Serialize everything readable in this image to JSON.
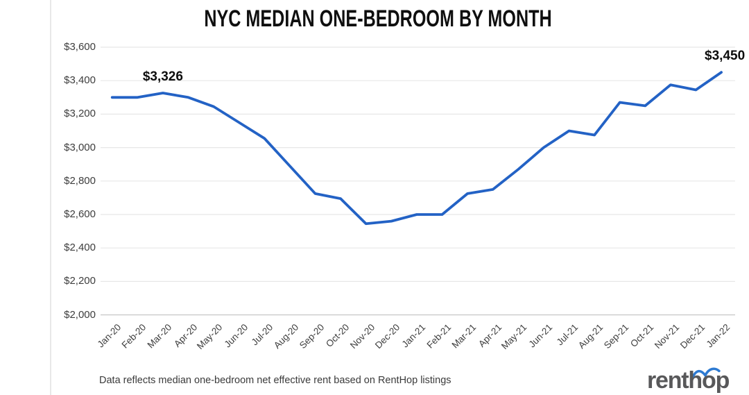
{
  "chart": {
    "title": "NYC MEDIAN ONE-BEDROOM BY MONTH",
    "footnote": "Data reflects median one-bedroom net effective rent based on RentHop listings",
    "logo_text": "renthop",
    "colors": {
      "background": "#ffffff",
      "line": "#2362c5",
      "gridline": "#e7e7e7",
      "axis_line": "#c9c9c9",
      "axis_text": "#3d3d3d",
      "title_text": "#0f0f0f",
      "annotation_text": "#0d0d0d",
      "footnote_text": "#3a3a3a",
      "logo_text": "#58585a",
      "logo_bird": "#2d7ad2",
      "divider": "#e8e8e8"
    }
  },
  "chart_data": {
    "type": "line",
    "title": "NYC MEDIAN ONE-BEDROOM BY MONTH",
    "x": [
      "Jan-20",
      "Feb-20",
      "Mar-20",
      "Apr-20",
      "May-20",
      "Jun-20",
      "Jul-20",
      "Aug-20",
      "Sep-20",
      "Oct-20",
      "Nov-20",
      "Dec-20",
      "Jan-21",
      "Feb-21",
      "Mar-21",
      "Apr-21",
      "May-21",
      "Jun-21",
      "Jul-21",
      "Aug-21",
      "Sep-21",
      "Oct-21",
      "Nov-21",
      "Dec-21",
      "Jan-22"
    ],
    "values": [
      3300,
      3300,
      3326,
      3300,
      3245,
      3150,
      3055,
      2890,
      2725,
      2695,
      2545,
      2560,
      2600,
      2600,
      2725,
      2750,
      2870,
      3000,
      3100,
      3075,
      3270,
      3250,
      3375,
      3345,
      3450
    ],
    "ylim": [
      2000,
      3600
    ],
    "yticks": [
      3600,
      3400,
      3200,
      3000,
      2800,
      2600,
      2400,
      2200,
      2000
    ],
    "ytick_labels": [
      "$3,600",
      "$3,400",
      "$3,200",
      "$3,000",
      "$2,800",
      "$2,600",
      "$2,400",
      "$2,200",
      "$2,000"
    ],
    "grid": true,
    "legend": false,
    "annotations": [
      {
        "x": "Mar-20",
        "label": "$3,326"
      },
      {
        "x": "Jan-22",
        "label": "$3,450"
      }
    ]
  }
}
